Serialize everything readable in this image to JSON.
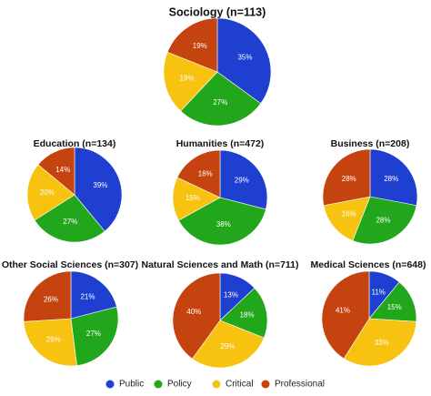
{
  "legend": [
    {
      "label": "Public",
      "color": "#1f3fd1"
    },
    {
      "label": "Policy",
      "color": "#22a61c"
    },
    {
      "label": "Critical",
      "color": "#f7c210"
    },
    {
      "label": "Professional",
      "color": "#c5430f"
    }
  ],
  "chart_data": {
    "type": "pie",
    "categories": [
      "Public",
      "Policy",
      "Critical",
      "Professional"
    ],
    "legend_position": "bottom",
    "charts": [
      {
        "title": "Sociology (n=113)",
        "values": [
          35,
          27,
          19,
          19
        ],
        "labels": [
          "35%",
          "27%",
          "19%",
          "19%"
        ]
      },
      {
        "title": "Education (n=134)",
        "values": [
          39,
          27,
          20,
          14
        ],
        "labels": [
          "39%",
          "27%",
          "20%",
          "14%"
        ]
      },
      {
        "title": "Humanities (n=472)",
        "values": [
          29,
          38,
          15,
          18
        ],
        "labels": [
          "29%",
          "38%",
          "15%",
          "18%"
        ]
      },
      {
        "title": "Business (n=208)",
        "values": [
          28,
          28,
          16,
          28
        ],
        "labels": [
          "28%",
          "28%",
          "16%",
          "28%"
        ]
      },
      {
        "title": "Other Social Sciences (n=307)",
        "values": [
          21,
          27,
          26,
          26
        ],
        "labels": [
          "21%",
          "27%",
          "26%",
          "26%"
        ]
      },
      {
        "title": "Natural Sciences and Math (n=711)",
        "values": [
          13,
          18,
          29,
          40
        ],
        "labels": [
          "13%",
          "18%",
          "29%",
          "40%"
        ]
      },
      {
        "title": "Medical Sciences (n=648)",
        "values": [
          11,
          15,
          33,
          41
        ],
        "labels": [
          "11%",
          "15%",
          "33%",
          "41%"
        ]
      }
    ]
  }
}
